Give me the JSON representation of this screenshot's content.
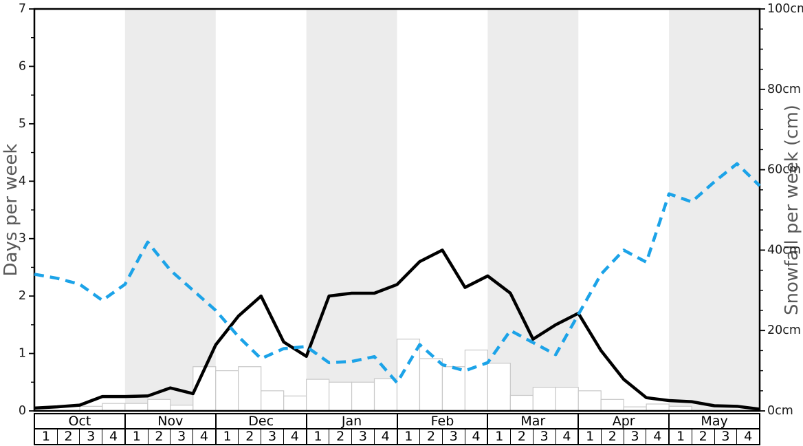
{
  "chart_data": {
    "type": "line",
    "title": "",
    "ylabel_left": "Days per week",
    "ylabel_right": "Snowfall per week (cm)",
    "left_axis": {
      "min": 0,
      "max": 7,
      "ticks": [
        "0",
        "1",
        "2",
        "3",
        "4",
        "5",
        "6",
        "7"
      ],
      "tick_values": [
        0,
        1,
        2,
        3,
        4,
        5,
        6,
        7
      ],
      "minor_step": 0.5
    },
    "right_axis": {
      "min": 0,
      "max": 100,
      "ticks": [
        "0cm",
        "20cm",
        "40cm",
        "60cm",
        "80cm",
        "100cm"
      ],
      "tick_values": [
        0,
        20,
        40,
        60,
        80,
        100
      ],
      "minor_step": 5
    },
    "months": [
      {
        "label": "Oct",
        "weeks": [
          "1",
          "2",
          "3",
          "4"
        ],
        "shaded": false
      },
      {
        "label": "Nov",
        "weeks": [
          "1",
          "2",
          "3",
          "4"
        ],
        "shaded": true
      },
      {
        "label": "Dec",
        "weeks": [
          "1",
          "2",
          "3",
          "4"
        ],
        "shaded": false
      },
      {
        "label": "Jan",
        "weeks": [
          "1",
          "2",
          "3",
          "4"
        ],
        "shaded": true
      },
      {
        "label": "Feb",
        "weeks": [
          "1",
          "2",
          "3",
          "4"
        ],
        "shaded": false
      },
      {
        "label": "Mar",
        "weeks": [
          "1",
          "2",
          "3",
          "4"
        ],
        "shaded": true
      },
      {
        "label": "Apr",
        "weeks": [
          "1",
          "2",
          "3",
          "4"
        ],
        "shaded": false
      },
      {
        "label": "May",
        "weeks": [
          "1",
          "2",
          "3",
          "4"
        ],
        "shaded": true
      }
    ],
    "x_mode": "33 points at week boundaries spanning 32 weeks (Oct w1 - May w4)",
    "series": [
      {
        "name": "snow-days-line",
        "axis": "left",
        "color": "#000000",
        "line_style": "solid",
        "values": [
          0.05,
          0.07,
          0.1,
          0.25,
          0.25,
          0.26,
          0.4,
          0.3,
          1.15,
          1.65,
          2.0,
          1.2,
          0.95,
          2.0,
          2.05,
          2.05,
          2.2,
          2.6,
          2.8,
          2.15,
          2.35,
          2.05,
          1.25,
          1.5,
          1.7,
          1.05,
          0.55,
          0.23,
          0.18,
          0.16,
          0.09,
          0.08,
          0.03
        ]
      },
      {
        "name": "snowfall-line",
        "axis": "right",
        "color": "#1ca3e8",
        "line_style": "dashed",
        "values": [
          34,
          33,
          31.5,
          27.5,
          31.5,
          42,
          35,
          30,
          25,
          18.5,
          13,
          15.5,
          16,
          12,
          12.3,
          13.5,
          7,
          16.5,
          11.5,
          10,
          12,
          20,
          17,
          14,
          24,
          34,
          40,
          37,
          54,
          52,
          57,
          61.5,
          56
        ]
      }
    ],
    "bars": {
      "name": "weekly-bars",
      "axis": "left",
      "fill": "#ffffff",
      "stroke": "#c8c8c8",
      "values": [
        0,
        0,
        0.08,
        0.13,
        0.13,
        0.2,
        0.1,
        0.77,
        0.7,
        0.77,
        0.35,
        0.26,
        0.55,
        0.5,
        0.5,
        0.56,
        1.25,
        0.91,
        0.77,
        1.06,
        0.83,
        0.27,
        0.41,
        0.41,
        0.35,
        0.2,
        0.07,
        0.12,
        0.08,
        0,
        0,
        0
      ]
    },
    "colors": {
      "band": "#ececec",
      "spine": "#000000",
      "tick_label": "#1a1a1a",
      "axis_title": "#595959",
      "background": "#ffffff"
    }
  }
}
